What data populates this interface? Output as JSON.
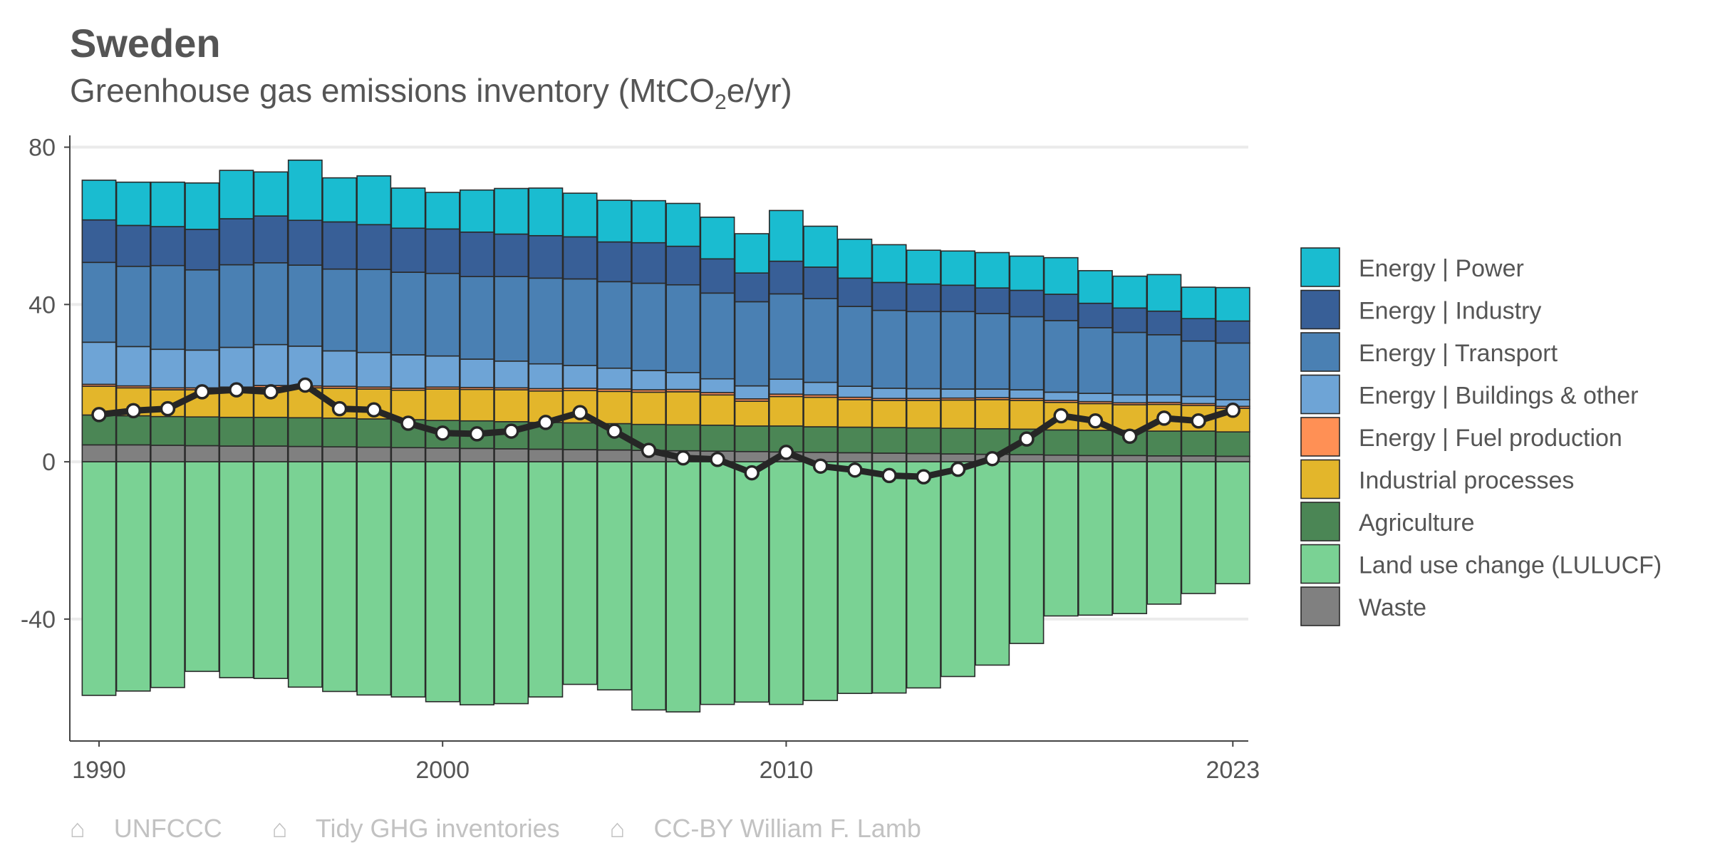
{
  "title": "Sweden",
  "subtitle_main": "Greenhouse gas emissions inventory (MtCO",
  "subtitle_sub": "2",
  "subtitle_end": "e/yr)",
  "footer": [
    {
      "icon": "house-icon",
      "glyph": "⌂",
      "text": "UNFCCC"
    },
    {
      "icon": "house-icon",
      "glyph": "⌂",
      "text": "Tidy GHG inventories"
    },
    {
      "icon": "house-icon",
      "glyph": "⌂",
      "text": "CC-BY William F. Lamb"
    }
  ],
  "chart_data": {
    "type": "bar",
    "stacked": true,
    "x": [
      1990,
      1991,
      1992,
      1993,
      1994,
      1995,
      1996,
      1997,
      1998,
      1999,
      2000,
      2001,
      2002,
      2003,
      2004,
      2005,
      2006,
      2007,
      2008,
      2009,
      2010,
      2011,
      2012,
      2013,
      2014,
      2015,
      2016,
      2017,
      2018,
      2019,
      2020,
      2021,
      2022,
      2023
    ],
    "x_ticks": [
      1990,
      2000,
      2010,
      2023
    ],
    "y_ticks": [
      80,
      40,
      0,
      -40
    ],
    "ylim": [
      -71,
      83
    ],
    "grid": "horizontal",
    "legend_position": "right",
    "series": [
      {
        "name": "Waste",
        "color": "#808080",
        "values": [
          4.3,
          4.3,
          4.2,
          4.1,
          4.0,
          4.0,
          3.9,
          3.8,
          3.7,
          3.6,
          3.5,
          3.4,
          3.3,
          3.2,
          3.1,
          3.0,
          2.9,
          2.8,
          2.7,
          2.6,
          2.5,
          2.4,
          2.3,
          2.2,
          2.1,
          2.0,
          1.9,
          1.8,
          1.7,
          1.6,
          1.6,
          1.5,
          1.5,
          1.4
        ]
      },
      {
        "name": "Agriculture",
        "color": "#4b8655",
        "values": [
          7.6,
          7.4,
          7.3,
          7.3,
          7.3,
          7.3,
          7.3,
          7.3,
          7.2,
          7.1,
          7.0,
          7.0,
          6.9,
          6.8,
          6.8,
          6.7,
          6.6,
          6.6,
          6.6,
          6.5,
          6.6,
          6.5,
          6.5,
          6.5,
          6.5,
          6.5,
          6.5,
          6.5,
          6.4,
          6.4,
          6.4,
          6.3,
          6.3,
          6.2
        ]
      },
      {
        "name": "Industrial processes",
        "color": "#e3b62b",
        "values": [
          7.3,
          7.1,
          6.8,
          6.9,
          7.2,
          7.6,
          7.6,
          7.6,
          7.6,
          7.5,
          8.0,
          8.0,
          8.1,
          8.0,
          8.2,
          8.2,
          8.2,
          8.4,
          7.7,
          6.3,
          7.5,
          7.5,
          7.0,
          6.9,
          7.0,
          7.2,
          7.4,
          7.3,
          7.0,
          6.8,
          6.5,
          6.8,
          6.5,
          6.0
        ]
      },
      {
        "name": "Energy | Fuel production",
        "color": "#ff9055",
        "values": [
          0.5,
          0.5,
          0.5,
          0.5,
          0.5,
          0.5,
          0.5,
          0.5,
          0.5,
          0.5,
          0.5,
          0.5,
          0.5,
          0.6,
          0.6,
          0.6,
          0.6,
          0.6,
          0.6,
          0.6,
          0.6,
          0.6,
          0.6,
          0.5,
          0.5,
          0.5,
          0.5,
          0.5,
          0.5,
          0.5,
          0.5,
          0.5,
          0.5,
          0.5
        ]
      },
      {
        "name": "Energy | Buildings & other",
        "color": "#6ea4d6",
        "values": [
          10.7,
          10.0,
          9.8,
          9.6,
          10.1,
          10.4,
          10.1,
          9.0,
          8.8,
          8.5,
          7.9,
          7.2,
          6.8,
          6.3,
          5.8,
          5.3,
          4.9,
          4.3,
          3.5,
          3.3,
          3.8,
          3.2,
          2.8,
          2.6,
          2.5,
          2.3,
          2.2,
          2.2,
          2.1,
          2.1,
          2.0,
          1.9,
          1.8,
          1.7
        ]
      },
      {
        "name": "Energy | Transport",
        "color": "#4a80b3",
        "values": [
          20.3,
          20.4,
          21.3,
          20.4,
          21.0,
          20.8,
          20.6,
          20.8,
          21.1,
          21.0,
          21.0,
          21.0,
          21.5,
          21.8,
          22.0,
          22.0,
          22.2,
          22.3,
          21.8,
          21.4,
          21.7,
          21.3,
          20.3,
          19.8,
          19.6,
          19.7,
          19.2,
          18.6,
          18.2,
          16.7,
          15.9,
          15.3,
          14.1,
          14.4
        ]
      },
      {
        "name": "Energy | Industry",
        "color": "#385f97",
        "values": [
          10.8,
          10.4,
          9.9,
          10.3,
          11.7,
          11.9,
          11.4,
          12.0,
          11.4,
          11.2,
          11.3,
          11.3,
          10.8,
          10.8,
          10.7,
          10.1,
          10.3,
          9.8,
          8.7,
          7.3,
          8.3,
          8.0,
          7.2,
          7.1,
          7.0,
          6.7,
          6.5,
          6.7,
          6.7,
          6.2,
          6.2,
          6.0,
          5.7,
          5.6
        ]
      },
      {
        "name": "Energy | Power",
        "color": "#1abcd0",
        "values": [
          10.1,
          11.0,
          11.3,
          11.8,
          12.3,
          11.2,
          15.3,
          11.2,
          12.4,
          10.2,
          9.3,
          10.7,
          11.6,
          12.1,
          11.1,
          10.6,
          10.7,
          10.9,
          10.6,
          10.0,
          12.9,
          10.4,
          9.9,
          9.6,
          8.6,
          8.7,
          9.0,
          8.7,
          9.3,
          8.3,
          8.1,
          9.3,
          8.0,
          8.5
        ]
      },
      {
        "name": "Land use change (LULUCF)",
        "color": "#7ad294",
        "values": [
          -59.4,
          -58.3,
          -57.4,
          -53.3,
          -54.9,
          -55.1,
          -57.3,
          -58.4,
          -59.3,
          -59.8,
          -61.0,
          -61.8,
          -61.5,
          -59.8,
          -56.6,
          -58.0,
          -63.1,
          -63.6,
          -61.7,
          -61.1,
          -61.7,
          -60.7,
          -58.9,
          -58.8,
          -57.5,
          -54.6,
          -51.7,
          -46.2,
          -39.2,
          -39.0,
          -38.6,
          -36.2,
          -33.5,
          -31.0
        ]
      }
    ],
    "legend_order": [
      "Energy | Power",
      "Energy | Industry",
      "Energy | Transport",
      "Energy | Buildings & other",
      "Energy | Fuel production",
      "Industrial processes",
      "Agriculture",
      "Land use change (LULUCF)",
      "Waste"
    ],
    "net_total": {
      "values": [
        12.0,
        13.0,
        13.5,
        17.8,
        18.3,
        17.8,
        19.5,
        13.5,
        13.2,
        9.8,
        7.3,
        7.1,
        7.8,
        10.0,
        12.5,
        7.8,
        2.9,
        1.0,
        0.6,
        -2.8,
        2.4,
        -1.1,
        -2.1,
        -3.5,
        -3.8,
        -1.9,
        0.8,
        5.8,
        11.7,
        10.4,
        6.5,
        11.1,
        10.4,
        13.1
      ],
      "color": "#262626",
      "marker": "#ffffff"
    }
  }
}
